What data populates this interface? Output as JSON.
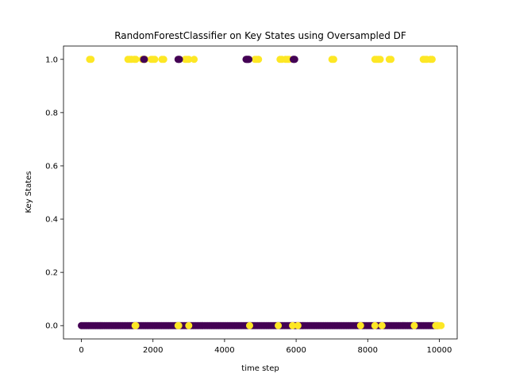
{
  "chart_data": {
    "type": "scatter",
    "title": "RandomForestClassifier on Key States using Oversampled DF",
    "xlabel": "time step",
    "ylabel": "Key States",
    "xlim": [
      -500,
      10500
    ],
    "ylim": [
      -0.05,
      1.05
    ],
    "xticks": [
      0,
      2000,
      4000,
      6000,
      8000,
      10000
    ],
    "yticks": [
      0.0,
      0.2,
      0.4,
      0.6,
      0.8,
      1.0
    ],
    "xtick_labels": [
      "0",
      "2000",
      "4000",
      "6000",
      "8000",
      "10000"
    ],
    "ytick_labels": [
      "0.0",
      "0.2",
      "0.4",
      "0.6",
      "0.8",
      "1.0"
    ],
    "grid": false,
    "colors": {
      "class_0": "#440154",
      "class_1": "#fde725",
      "axes": "#000000"
    },
    "series": [
      {
        "values_y": 1.0,
        "x_yellow": [
          230,
          270,
          1300,
          1350,
          1400,
          1480,
          1520,
          1700,
          1780,
          1950,
          2000,
          2050,
          2250,
          2300,
          2900,
          2950,
          3000,
          3150,
          4850,
          4900,
          4950,
          5550,
          5600,
          5700,
          5750,
          5800,
          7000,
          7050,
          8200,
          8250,
          8300,
          8350,
          8600,
          8650,
          9550,
          9600,
          9650,
          9750,
          9800
        ],
        "x_purple": [
          1740,
          1760,
          2700,
          2720,
          2740,
          4600,
          4620,
          4640,
          4660,
          4680,
          5920,
          5940,
          5960
        ]
      },
      {
        "values_y": 0.0,
        "x_yellow": [
          1500,
          1520,
          2700,
          2720,
          3000,
          4700,
          5500,
          5900,
          6050,
          7800,
          8200,
          8400,
          9300,
          9900,
          9950,
          10000,
          10050
        ],
        "x_purple_ranges": [
          [
            0,
            9980
          ]
        ]
      }
    ]
  }
}
